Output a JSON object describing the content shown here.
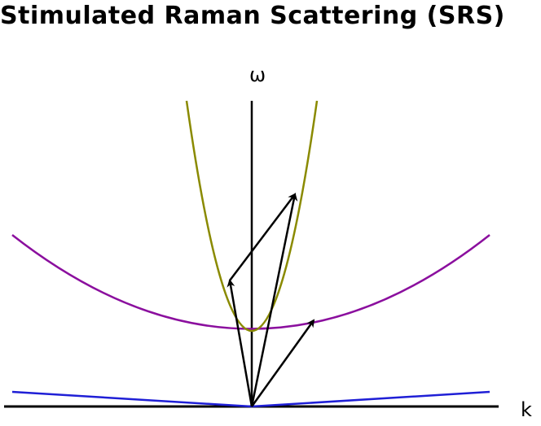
{
  "diagram": {
    "title": "Stimulated Raman Scattering (SRS)",
    "axes": {
      "vertical_label": "ω",
      "horizontal_label": "k"
    },
    "colors": {
      "axes": "#000000",
      "plasma_wave_curve": "#8a8a00",
      "em_wave_curve": "#8b0f9e",
      "light_line": "#1f1fd6",
      "arrows": "#000000"
    }
  }
}
